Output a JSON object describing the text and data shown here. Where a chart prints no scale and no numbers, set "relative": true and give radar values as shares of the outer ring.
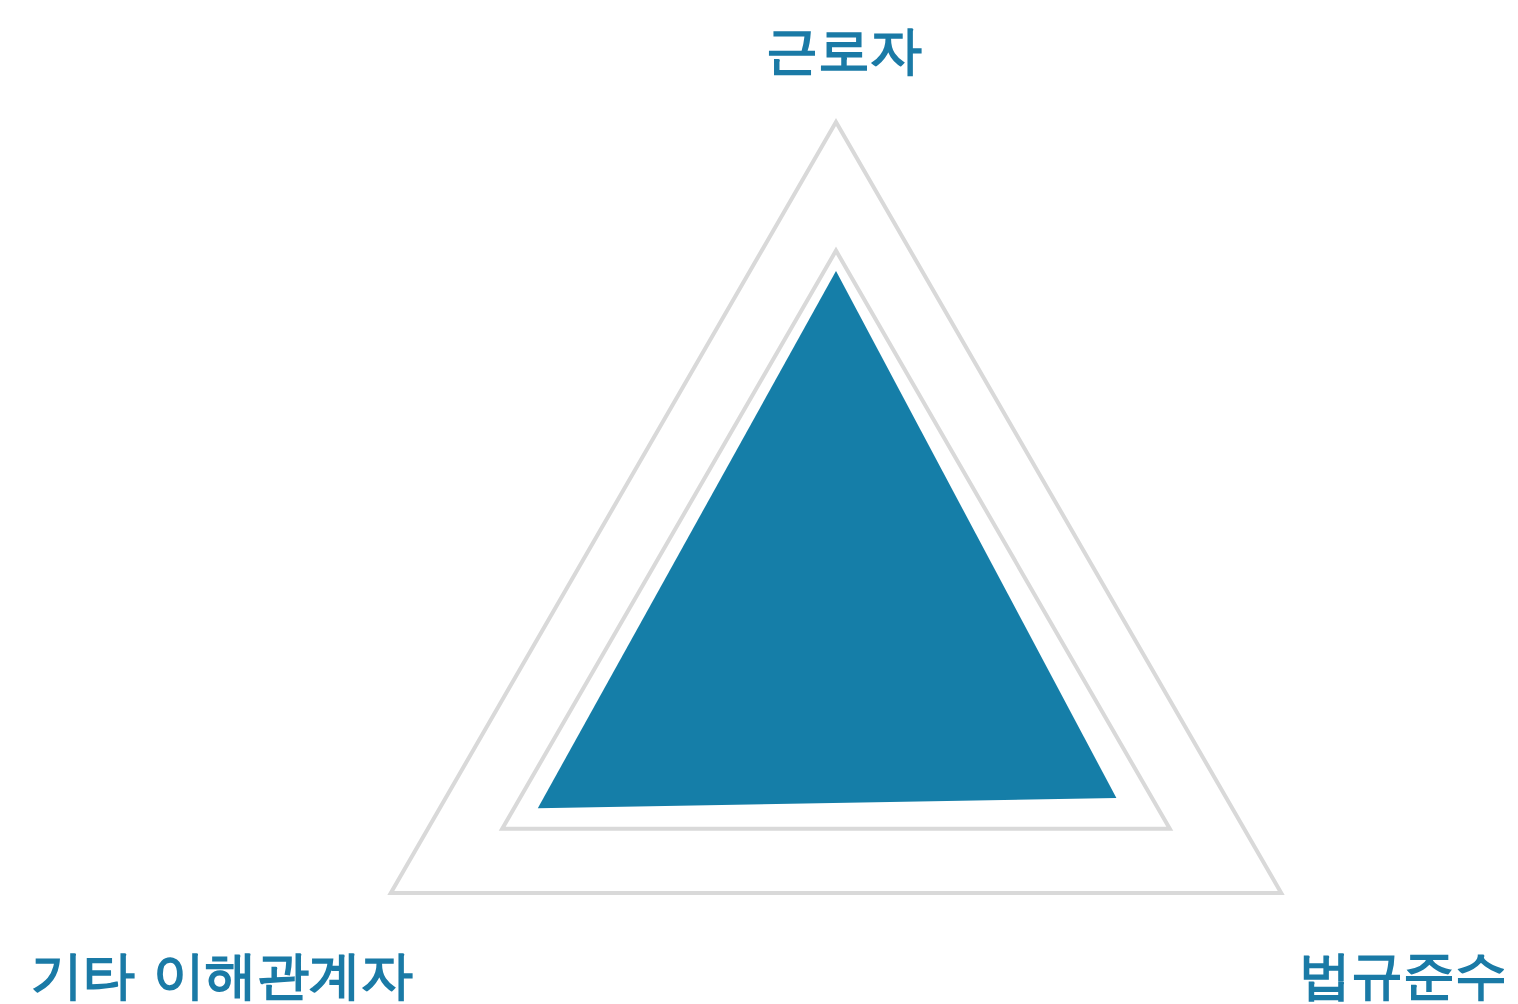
{
  "chart_data": {
    "type": "radar",
    "relative": true,
    "grid": true,
    "categories": [
      "근로자",
      "법규준수",
      "기타 이해관계자"
    ],
    "series": [
      {
        "color": "#157ea8",
        "values": [
          0.71,
          0.63,
          0.67
        ]
      }
    ]
  }
}
